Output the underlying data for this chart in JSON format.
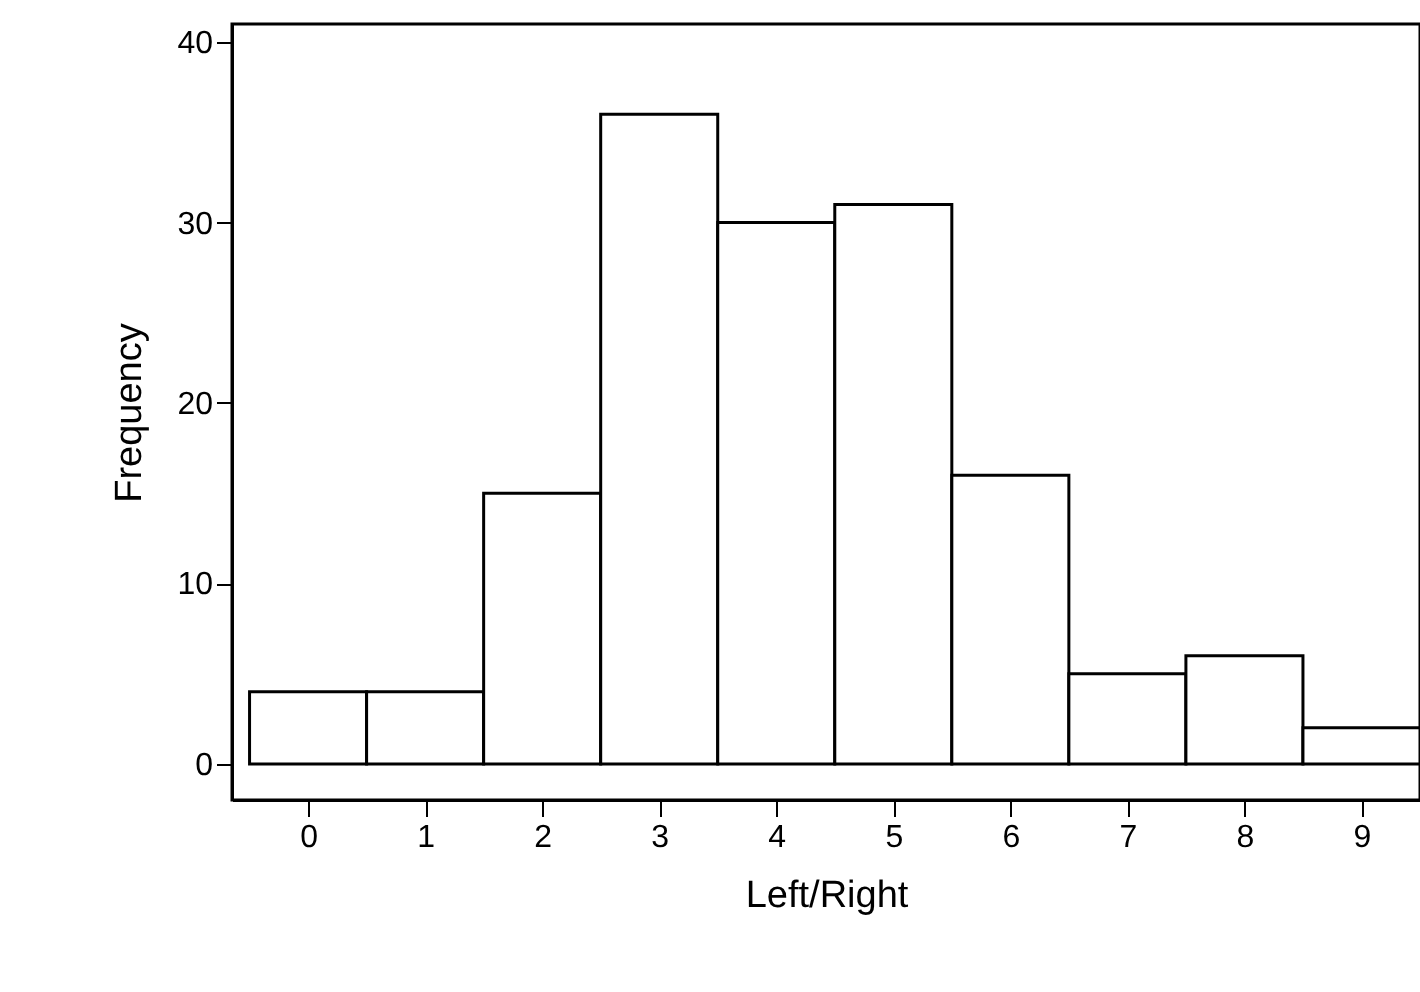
{
  "chart_data": {
    "type": "histogram",
    "xlabel": "Left/Right",
    "ylabel": "Frequency",
    "bins": [
      -0.5,
      0.5,
      1.5,
      2.5,
      3.5,
      4.5,
      5.5,
      6.5,
      7.5,
      8.5,
      9.5
    ],
    "values": [
      4,
      4,
      15,
      36,
      30,
      31,
      16,
      5,
      6,
      2
    ],
    "color": "#ffffff",
    "xlim": [
      -0.65,
      9.5
    ],
    "xticks": [
      0,
      1,
      2,
      3,
      4,
      5,
      6,
      7,
      8,
      9
    ],
    "ylim": [
      -2,
      41
    ],
    "yticks": [
      0,
      10,
      20,
      30,
      40
    ],
    "grid": false
  }
}
